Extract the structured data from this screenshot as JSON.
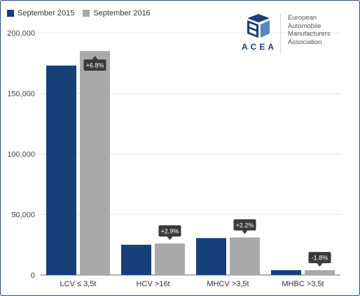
{
  "chart_data": {
    "type": "bar",
    "categories": [
      "LCV ≤ 3,5t",
      "HCV >16t",
      "MHCV >3,5t",
      "MHBC >3,5t"
    ],
    "series": [
      {
        "name": "September 2015",
        "color": "#173f78",
        "values": [
          173000,
          25000,
          30500,
          4000
        ]
      },
      {
        "name": "September 2016",
        "color": "#a8a9ab",
        "values": [
          185000,
          26000,
          31000,
          4000
        ]
      }
    ],
    "annotations": [
      "+6.8%",
      "+2.9%",
      "+2.2%",
      "-1.8%"
    ],
    "ylim": [
      0,
      200000
    ],
    "yticks": [
      {
        "value": 0,
        "label": "0"
      },
      {
        "value": 50000,
        "label": "50,000"
      },
      {
        "value": 100000,
        "label": "100,000"
      },
      {
        "value": 150000,
        "label": "150,000"
      },
      {
        "value": 200000,
        "label": "200,000"
      }
    ],
    "legend_position": "top-left",
    "grid": true
  },
  "logo": {
    "name": "ACEA",
    "lines": [
      "European",
      "Automobile",
      "Manufacturers",
      "Association"
    ]
  },
  "legend": {
    "items": [
      "September 2015",
      "September 2016"
    ]
  }
}
